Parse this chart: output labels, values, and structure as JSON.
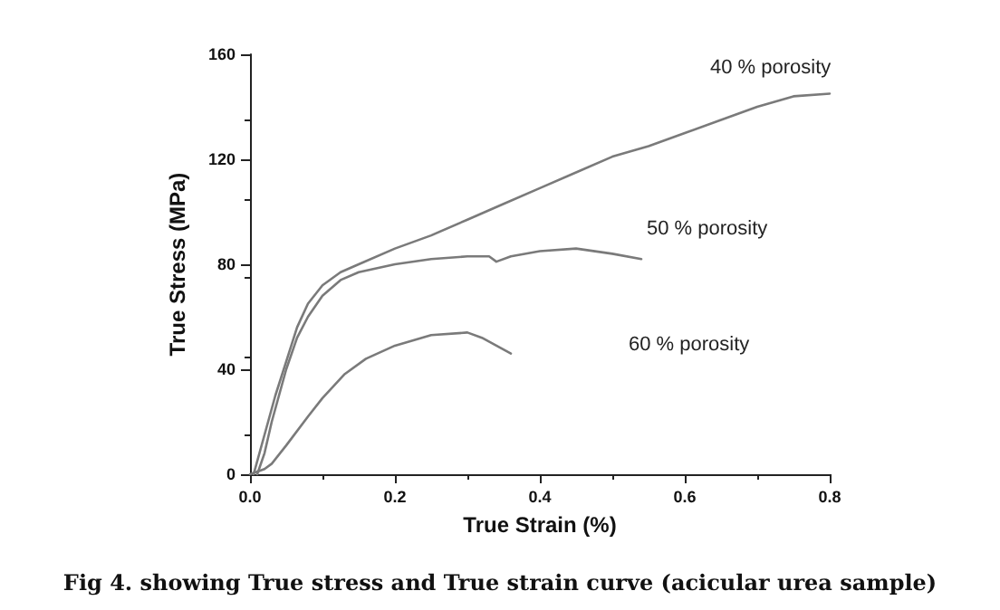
{
  "chart_data": {
    "type": "line",
    "title": "Fig 4. showing True stress and True strain curve (acicular urea sample)",
    "xlabel": "True Strain (%)",
    "ylabel": "True Stress (MPa)",
    "xlim": [
      0,
      0.8
    ],
    "xticks": [
      {
        "value": 0,
        "label": "0.0"
      },
      0.2,
      0.4,
      0.6,
      0.8
    ],
    "ylim": [
      0,
      160
    ],
    "yticks": [
      0,
      40,
      80,
      120,
      160
    ],
    "grid": false,
    "marker": "none",
    "line_style": "solid",
    "series": [
      {
        "color": "#7a7a7a",
        "x": [
          0.005,
          0.02,
          0.035,
          0.05,
          0.065,
          0.08,
          0.1,
          0.125,
          0.15,
          0.2,
          0.25,
          0.3,
          0.35,
          0.4,
          0.45,
          0.5,
          0.55,
          0.6,
          0.65,
          0.7,
          0.75,
          0.8
        ],
        "values": [
          0,
          15,
          30,
          43,
          56,
          65,
          72,
          77,
          80,
          86,
          91,
          97,
          103,
          109,
          115,
          121,
          125,
          130,
          135,
          140,
          144,
          145
        ]
      },
      {
        "color": "#7a7a7a",
        "x": [
          0.01,
          0.02,
          0.03,
          0.05,
          0.065,
          0.08,
          0.1,
          0.125,
          0.15,
          0.2,
          0.25,
          0.3,
          0.33,
          0.34,
          0.36,
          0.4,
          0.45,
          0.5,
          0.54
        ],
        "values": [
          0,
          8,
          20,
          40,
          52,
          60,
          68,
          74,
          77,
          80,
          82,
          83,
          83,
          81,
          83,
          85,
          86,
          84,
          82
        ]
      },
      {
        "color": "#7a7a7a",
        "x": [
          0,
          0.02,
          0.03,
          0.05,
          0.08,
          0.1,
          0.13,
          0.16,
          0.2,
          0.25,
          0.3,
          0.32,
          0.34,
          0.36
        ],
        "values": [
          0,
          2,
          4,
          11,
          22,
          29,
          38,
          44,
          49,
          53,
          54,
          52,
          49,
          46
        ]
      }
    ],
    "annotations": [
      "40 % porosity",
      "50 % porosity",
      "60 % porosity"
    ]
  }
}
